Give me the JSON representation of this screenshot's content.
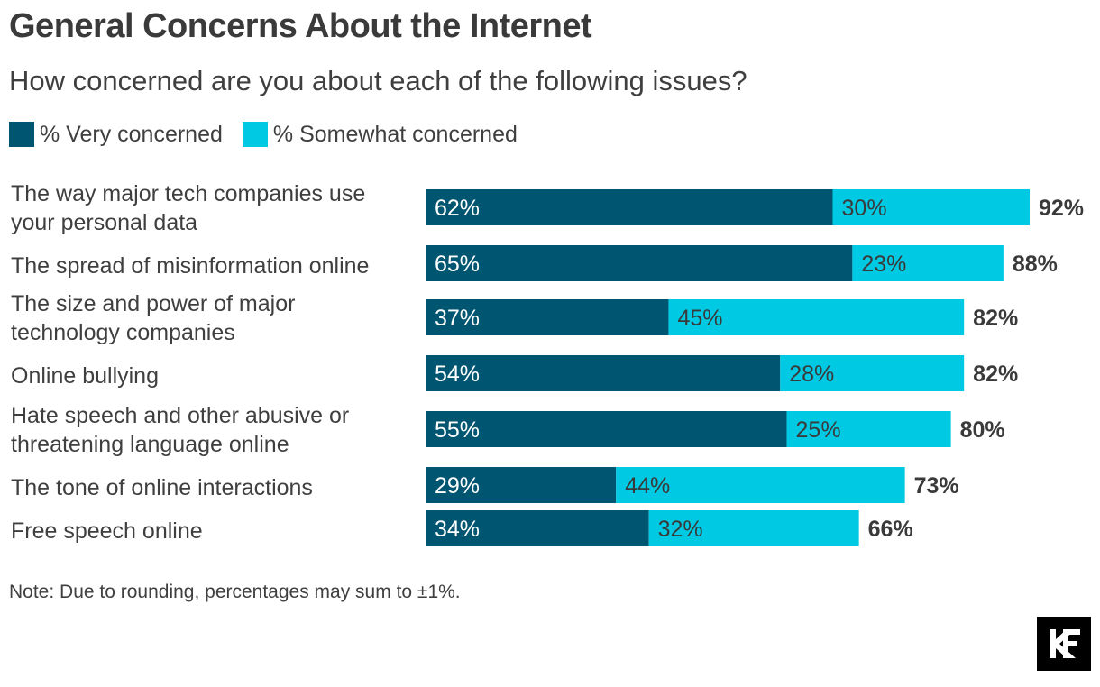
{
  "title": "General Concerns About the Internet",
  "subtitle": "How concerned are you about each of the following issues?",
  "note": "Note: Due to rounding, percentages may sum to ±1%.",
  "logo_text": "KF",
  "legend": [
    {
      "label": "% Very concerned",
      "color": "#005670"
    },
    {
      "label": "% Somewhat concerned",
      "color": "#00c9e4"
    }
  ],
  "chart_data": {
    "type": "bar",
    "orientation": "horizontal",
    "stacked": true,
    "categories": [
      [
        "The way major tech companies use",
        "your personal data"
      ],
      [
        "The spread of misinformation online"
      ],
      [
        "The size and power of major",
        "technology companies"
      ],
      [
        "Online bullying"
      ],
      [
        "Hate speech and other abusive or",
        "threatening language online"
      ],
      [
        "The tone of online interactions"
      ],
      [
        "Free speech online"
      ]
    ],
    "series": [
      {
        "name": "% Very concerned",
        "color": "#005670",
        "values": [
          62,
          65,
          37,
          54,
          55,
          29,
          34
        ]
      },
      {
        "name": "% Somewhat concerned",
        "color": "#00c9e4",
        "values": [
          30,
          23,
          45,
          28,
          25,
          44,
          32
        ]
      }
    ],
    "totals": [
      92,
      88,
      82,
      82,
      80,
      73,
      66
    ],
    "value_suffix": "%",
    "xlim": [
      0,
      92
    ],
    "grid": false,
    "legend_position": "top-left"
  }
}
